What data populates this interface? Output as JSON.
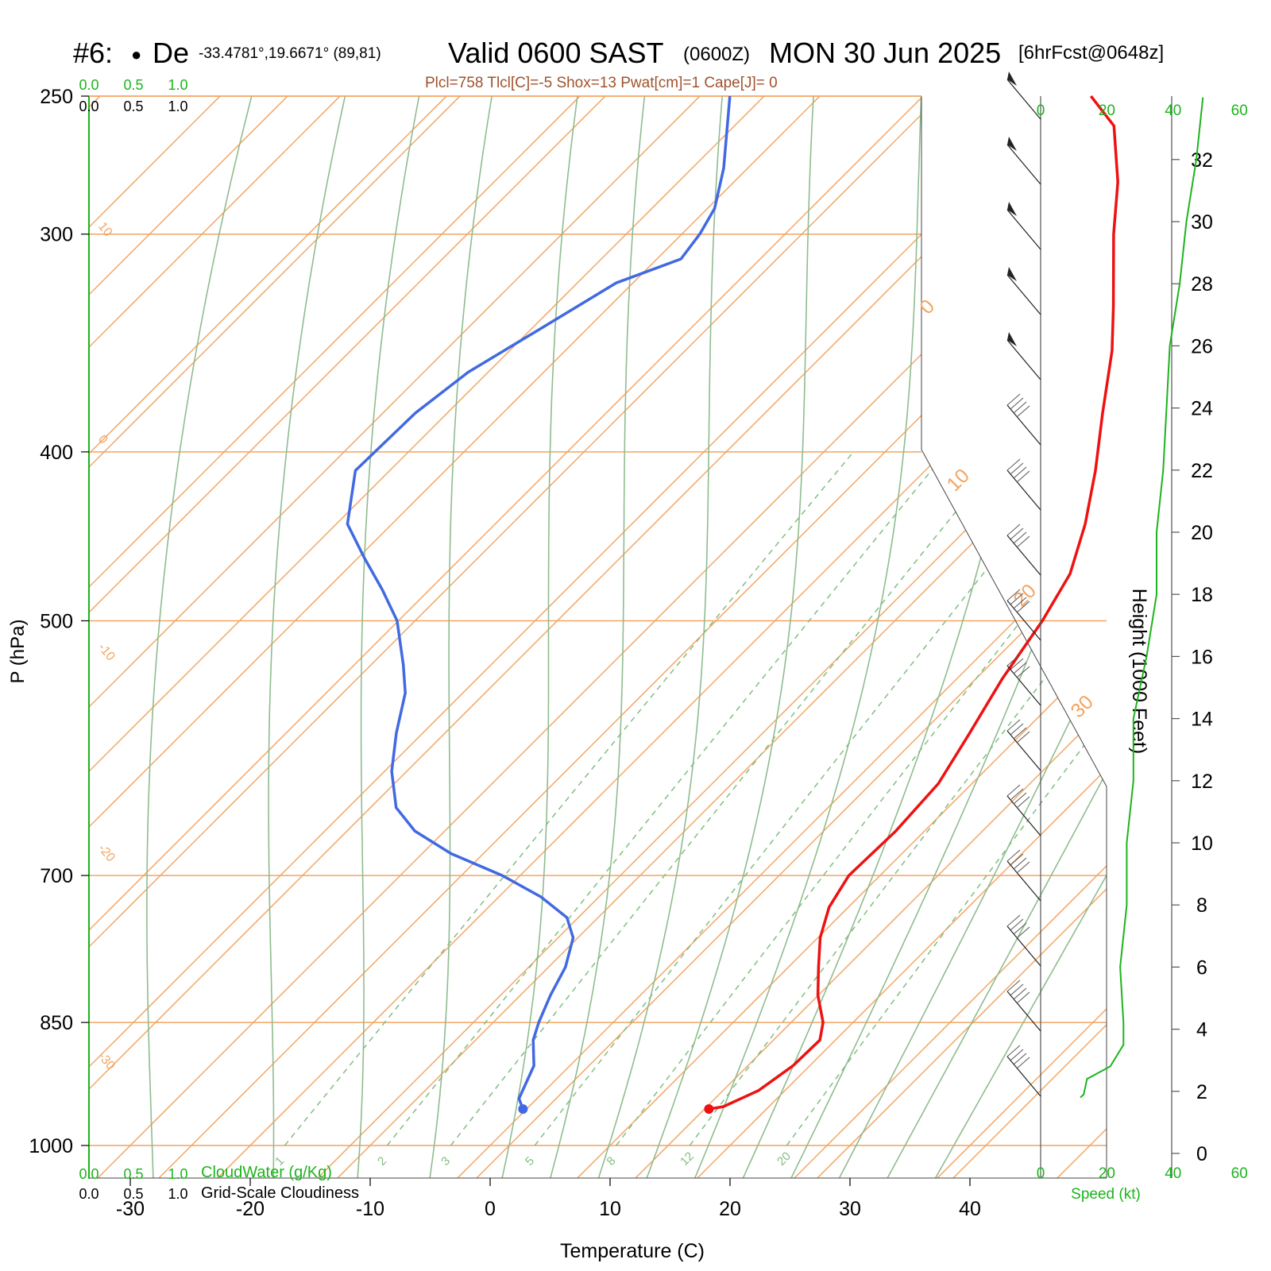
{
  "header": {
    "station": "#6:",
    "station_marker": "●",
    "station_name": "De",
    "coords": "-33.4781°,19.6671° (89,81)",
    "valid": "Valid 0600 SAST",
    "zulu": "(0600Z)",
    "date": "MON 30 Jun 2025",
    "forecast": "[6hrFcst@0648z]"
  },
  "stats_line": "Plcl=758 Tlcl[C]=-5 Shox=13 Pwat[cm]=1 Cape[J]= 0",
  "colors": {
    "temperature": "#ee1111",
    "dewpoint": "#4169e1",
    "isotherm_isobar": "#f4a460",
    "dry_adiabat": "#8fbc8f",
    "mixing_ratio": "#7fbf7f",
    "speed": "#1db41d",
    "stats": "#a0522d"
  },
  "chart_data": {
    "type": "line",
    "kind": "skew-T log-P sounding",
    "xlabel": "Temperature (C)",
    "ylabel": "P (hPa)",
    "xlim": [
      -30,
      40
    ],
    "ylim": [
      250,
      1000
    ],
    "x_ticks": [
      "-30",
      "-20",
      "-10",
      "0",
      "10",
      "20",
      "30",
      "40"
    ],
    "y_ticks": [
      "250",
      "300",
      "400",
      "500",
      "700",
      "850",
      "1000"
    ],
    "skewed_isotherm_labels": [
      "-30",
      "-20",
      "-10",
      "0",
      "10",
      "20",
      "30",
      "0",
      "10",
      "20",
      "30"
    ],
    "mixing_ratio_labels": [
      "1",
      "2",
      "3",
      "5",
      "8",
      "12",
      "20"
    ],
    "series": [
      {
        "name": "Temperature",
        "points": [
          {
            "p": 953,
            "t": 15.2
          },
          {
            "p": 950,
            "t": 16.2
          },
          {
            "p": 930,
            "t": 17.8
          },
          {
            "p": 900,
            "t": 18.6
          },
          {
            "p": 870,
            "t": 18.7
          },
          {
            "p": 850,
            "t": 17.5
          },
          {
            "p": 820,
            "t": 14.8
          },
          {
            "p": 790,
            "t": 12.5
          },
          {
            "p": 760,
            "t": 10.2
          },
          {
            "p": 730,
            "t": 8.4
          },
          {
            "p": 700,
            "t": 7.4
          },
          {
            "p": 660,
            "t": 7.6
          },
          {
            "p": 620,
            "t": 7.2
          },
          {
            "p": 580,
            "t": 5.6
          },
          {
            "p": 540,
            "t": 3.8
          },
          {
            "p": 500,
            "t": 2.3
          },
          {
            "p": 470,
            "t": 0.7
          },
          {
            "p": 440,
            "t": -2.2
          },
          {
            "p": 410,
            "t": -5.8
          },
          {
            "p": 380,
            "t": -10.0
          },
          {
            "p": 350,
            "t": -14.4
          },
          {
            "p": 330,
            "t": -18.0
          },
          {
            "p": 300,
            "t": -24.0
          },
          {
            "p": 280,
            "t": -28.0
          },
          {
            "p": 260,
            "t": -33.0
          },
          {
            "p": 250,
            "t": -37.4
          }
        ]
      },
      {
        "name": "Dewpoint",
        "points": [
          {
            "p": 953,
            "t": -0.3
          },
          {
            "p": 940,
            "t": -1.5
          },
          {
            "p": 900,
            "t": -3.0
          },
          {
            "p": 870,
            "t": -5.2
          },
          {
            "p": 850,
            "t": -6.2
          },
          {
            "p": 820,
            "t": -7.5
          },
          {
            "p": 790,
            "t": -8.6
          },
          {
            "p": 760,
            "t": -10.4
          },
          {
            "p": 740,
            "t": -12.6
          },
          {
            "p": 720,
            "t": -16.5
          },
          {
            "p": 700,
            "t": -21.5
          },
          {
            "p": 680,
            "t": -27.6
          },
          {
            "p": 660,
            "t": -32.5
          },
          {
            "p": 640,
            "t": -36.0
          },
          {
            "p": 610,
            "t": -39.4
          },
          {
            "p": 580,
            "t": -42.2
          },
          {
            "p": 550,
            "t": -44.8
          },
          {
            "p": 530,
            "t": -47.3
          },
          {
            "p": 500,
            "t": -51.5
          },
          {
            "p": 480,
            "t": -55.3
          },
          {
            "p": 460,
            "t": -59.5
          },
          {
            "p": 440,
            "t": -63.7
          },
          {
            "p": 410,
            "t": -67.5
          },
          {
            "p": 380,
            "t": -67.3
          },
          {
            "p": 360,
            "t": -66.3
          },
          {
            "p": 340,
            "t": -63.9
          },
          {
            "p": 320,
            "t": -61.4
          },
          {
            "p": 310,
            "t": -58.0
          },
          {
            "p": 300,
            "t": -58.5
          },
          {
            "p": 290,
            "t": -59.4
          },
          {
            "p": 275,
            "t": -62.0
          },
          {
            "p": 250,
            "t": -67.5
          }
        ]
      }
    ],
    "wind_speed_profile": {
      "name": "Speed (kt)",
      "xlim": [
        0,
        60
      ],
      "x_ticks": [
        "0",
        "20",
        "40",
        "60"
      ],
      "height_kft": [
        1.8,
        1.9,
        2.4,
        2.8,
        3.5,
        4.2,
        6,
        8,
        10,
        12,
        14,
        16,
        18,
        20,
        22,
        24,
        26,
        28,
        30,
        32,
        34
      ],
      "speed_kt": [
        12,
        13,
        14,
        21,
        25,
        25,
        24,
        26,
        26,
        28,
        28,
        32,
        35,
        35,
        37,
        38,
        39,
        42,
        44,
        47,
        49
      ]
    },
    "height_axis": {
      "label": "Height (1000 Feet)",
      "ticks": [
        "0",
        "2",
        "4",
        "6",
        "8",
        "10",
        "12",
        "14",
        "16",
        "18",
        "20",
        "22",
        "24",
        "26",
        "28",
        "30",
        "32"
      ]
    },
    "cloud_scales": {
      "cloudwater_label": "CloudWater (g/Kg)",
      "cloudiness_label": "Grid-Scale Cloudiness",
      "ticks": [
        "0.0",
        "0.5",
        "1.0"
      ]
    }
  }
}
